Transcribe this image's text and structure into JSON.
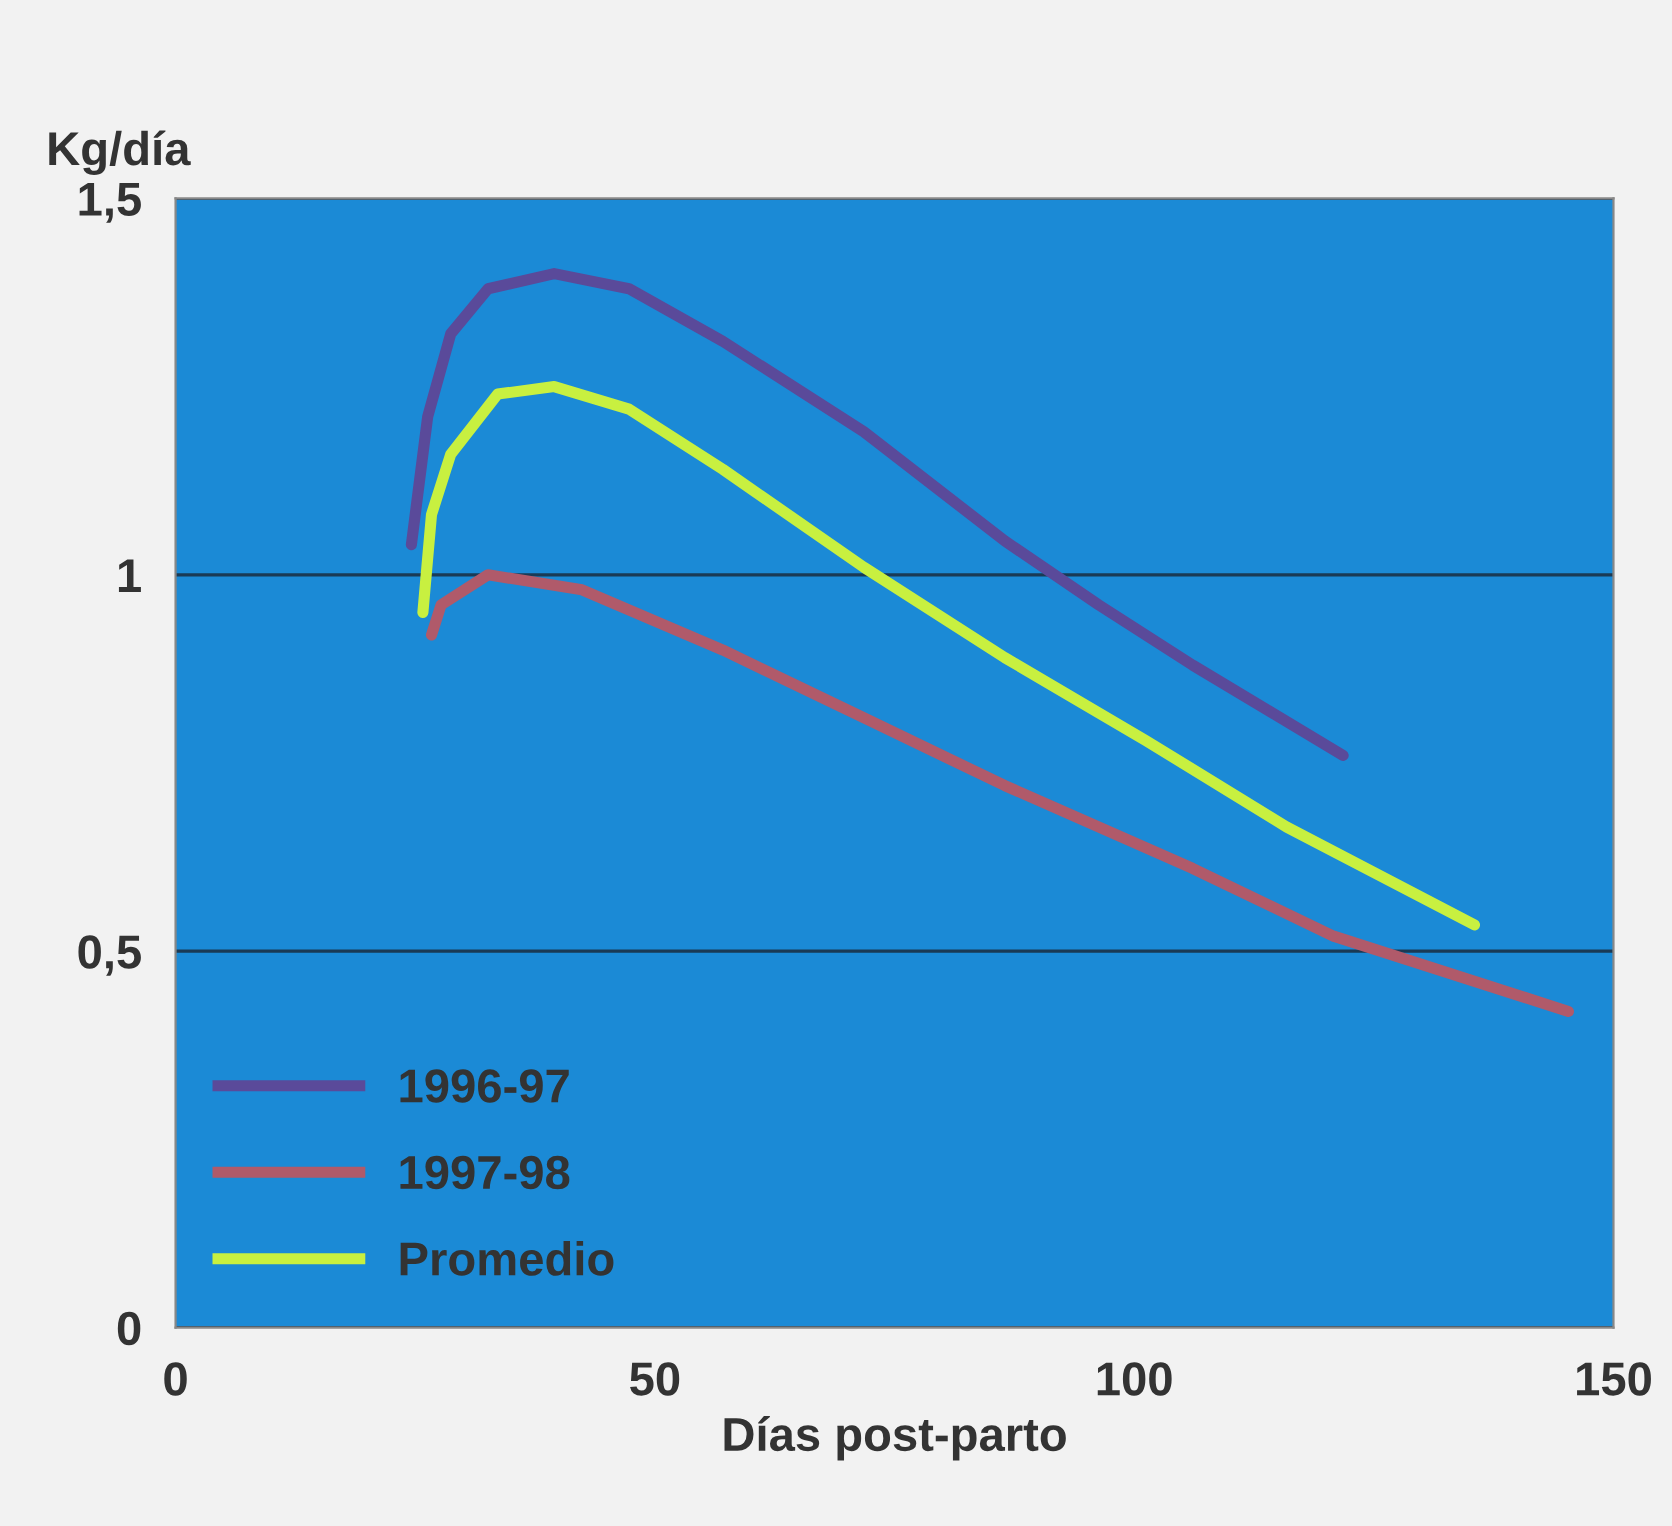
{
  "chart_data": {
    "type": "line",
    "xlabel": "Días post-parto",
    "ylabel": "Kg/día",
    "xlim": [
      0,
      150
    ],
    "xticks": [
      0,
      50,
      100,
      150
    ],
    "ylim": [
      0,
      1.5
    ],
    "yticks": [
      0,
      {
        "value": 0.5,
        "label": "0,5"
      },
      1,
      {
        "value": 1.5,
        "label": "1,5"
      }
    ],
    "grid": "y",
    "legend": "bottom left",
    "marker": "none",
    "line_style": "solid",
    "series": [
      {
        "name": "1996-97",
        "color": "#5a4a9a",
        "x": [
          24.6,
          26.3,
          28.7,
          32.6,
          39.5,
          47.3,
          57.1,
          71.8,
          86.5,
          96.3,
          106.1,
          121.8
        ],
        "values": [
          1.04,
          1.21,
          1.32,
          1.38,
          1.4,
          1.38,
          1.31,
          1.19,
          1.045,
          0.96,
          0.88,
          0.76
        ]
      },
      {
        "name": "1997-98",
        "color": "#b05a6a",
        "x": [
          26.7,
          27.7,
          32.6,
          42.4,
          57.1,
          71.8,
          86.5,
          106.1,
          120.8,
          145.3
        ],
        "values": [
          0.92,
          0.96,
          1.0,
          0.98,
          0.9,
          0.81,
          0.72,
          0.61,
          0.52,
          0.42
        ]
      },
      {
        "name": "Promedio",
        "color": "#c8f040",
        "x": [
          25.8,
          26.7,
          28.7,
          33.6,
          39.5,
          47.3,
          57.1,
          71.8,
          86.5,
          101.2,
          115.9,
          135.5
        ],
        "values": [
          0.95,
          1.08,
          1.16,
          1.24,
          1.25,
          1.22,
          1.14,
          1.01,
          0.89,
          0.78,
          0.665,
          0.535
        ]
      }
    ]
  }
}
